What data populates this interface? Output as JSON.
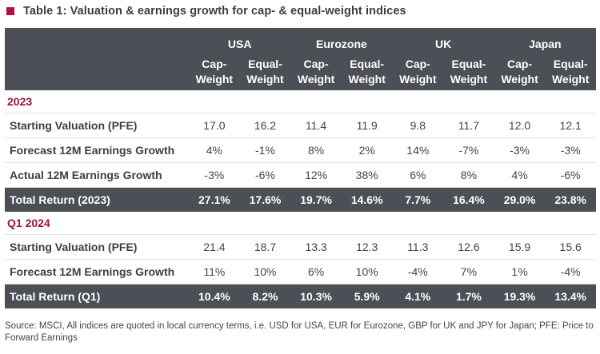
{
  "title": "Table 1: Valuation & earnings growth for cap- & equal-weight indices",
  "regions": [
    "USA",
    "Eurozone",
    "UK",
    "Japan"
  ],
  "subheaders": [
    [
      "Cap-",
      "Weight"
    ],
    [
      "Equal-",
      "Weight"
    ],
    [
      "Cap-",
      "Weight"
    ],
    [
      "Equal-",
      "Weight"
    ],
    [
      "Cap-",
      "Weight"
    ],
    [
      "Equal-",
      "Weight"
    ],
    [
      "Cap-",
      "Weight"
    ],
    [
      "Equal-",
      "Weight"
    ]
  ],
  "sections": [
    {
      "name": "2023",
      "rows": [
        {
          "label": "Starting Valuation (PFE)",
          "values": [
            "17.0",
            "16.2",
            "11.4",
            "11.9",
            "9.8",
            "11.7",
            "12.0",
            "12.1"
          ]
        },
        {
          "label": "Forecast 12M Earnings Growth",
          "values": [
            "4%",
            "-1%",
            "8%",
            "2%",
            "14%",
            "-7%",
            "-3%",
            "-3%"
          ]
        },
        {
          "label": "Actual 12M Earnings Growth",
          "values": [
            "-3%",
            "-6%",
            "12%",
            "38%",
            "6%",
            "8%",
            "4%",
            "-6%"
          ]
        }
      ],
      "total": {
        "label": "Total Return (2023)",
        "values": [
          "27.1%",
          "17.6%",
          "19.7%",
          "14.6%",
          "7.7%",
          "16.4%",
          "29.0%",
          "23.8%"
        ]
      }
    },
    {
      "name": "Q1 2024",
      "rows": [
        {
          "label": "Starting Valuation (PFE)",
          "values": [
            "21.4",
            "18.7",
            "13.3",
            "12.3",
            "11.3",
            "12.6",
            "15.9",
            "15.6"
          ]
        },
        {
          "label": "Forecast 12M Earnings Growth",
          "values": [
            "11%",
            "10%",
            "6%",
            "10%",
            "-4%",
            "7%",
            "1%",
            "-4%"
          ]
        }
      ],
      "total": {
        "label": "Total Return (Q1)",
        "values": [
          "10.4%",
          "8.2%",
          "10.3%",
          "5.9%",
          "4.1%",
          "1.7%",
          "19.3%",
          "13.4%"
        ]
      }
    }
  ],
  "footnote": "Source: MSCI, All indices are quoted in local currency terms, i.e. USD for USA, EUR for Eurozone, GBP for UK and JPY for Japan; PFE: Price to Forward Earnings",
  "colors": {
    "header_bg": "#4c5056",
    "accent": "#b3123f",
    "section_text": "#9c1538"
  }
}
